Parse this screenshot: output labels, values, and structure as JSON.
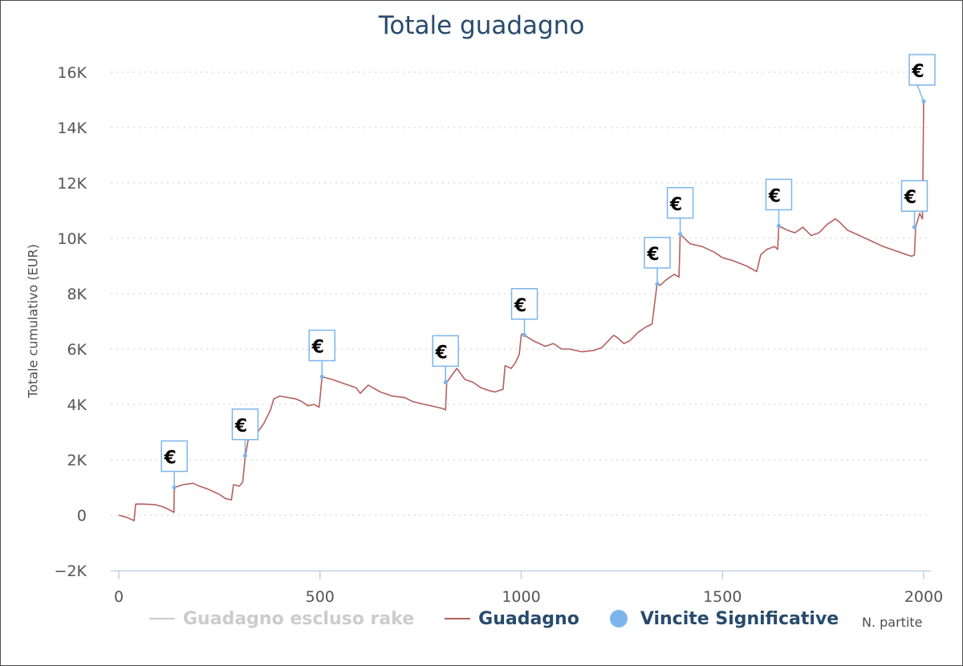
{
  "chart_data": {
    "type": "line",
    "title": "Totale guadagno",
    "ylabel": "Totale cumulativo (EUR)",
    "xlabel": "N. partite",
    "ylim": [
      -2000,
      16000
    ],
    "xlim": [
      0,
      2000
    ],
    "y_ticks": [
      "−2K",
      "0",
      "2K",
      "4K",
      "6K",
      "8K",
      "10K",
      "12K",
      "14K",
      "16K"
    ],
    "y_tick_values": [
      -2000,
      0,
      2000,
      4000,
      6000,
      8000,
      10000,
      12000,
      14000,
      16000
    ],
    "x_ticks": [
      "0",
      "500",
      "1000",
      "1500",
      "2000"
    ],
    "x_tick_values": [
      0,
      500,
      1000,
      1500,
      2000
    ],
    "grid": "horizontal dotted",
    "legend_position": "bottom",
    "series": [
      {
        "name": "Guadagno escluso rake",
        "color": "#cccccc",
        "hidden": true,
        "values": []
      },
      {
        "name": "Guadagno",
        "color": "#b5605f",
        "x": [
          0,
          20,
          38,
          42,
          60,
          90,
          110,
          125,
          137,
          138,
          160,
          185,
          200,
          220,
          250,
          265,
          280,
          285,
          300,
          308,
          314,
          325,
          345,
          360,
          377,
          385,
          400,
          420,
          440,
          455,
          470,
          485,
          498,
          505,
          530,
          560,
          590,
          600,
          620,
          650,
          680,
          710,
          730,
          760,
          790,
          805,
          812,
          815,
          840,
          860,
          880,
          900,
          920,
          935,
          955,
          960,
          975,
          985,
          995,
          1000,
          1002,
          1008,
          1030,
          1060,
          1080,
          1100,
          1120,
          1150,
          1180,
          1200,
          1230,
          1240,
          1255,
          1270,
          1290,
          1310,
          1325,
          1338,
          1345,
          1360,
          1380,
          1392,
          1395,
          1420,
          1450,
          1480,
          1500,
          1525,
          1560,
          1585,
          1595,
          1610,
          1630,
          1637,
          1640,
          1660,
          1680,
          1700,
          1720,
          1740,
          1760,
          1780,
          1790,
          1810,
          1840,
          1870,
          1900,
          1920,
          1940,
          1960,
          1970,
          1977,
          1980,
          1990,
          1995,
          1997,
          2000
        ],
        "values": [
          0,
          -80,
          -200,
          400,
          400,
          380,
          300,
          200,
          100,
          1000,
          1100,
          1150,
          1050,
          950,
          750,
          600,
          550,
          1100,
          1050,
          1200,
          2100,
          3000,
          3000,
          3300,
          3800,
          4200,
          4300,
          4250,
          4200,
          4100,
          3950,
          4000,
          3900,
          5000,
          4900,
          4750,
          4600,
          4400,
          4700,
          4450,
          4300,
          4250,
          4100,
          4000,
          3900,
          3850,
          3800,
          4800,
          5300,
          4900,
          4800,
          4600,
          4500,
          4450,
          4550,
          5400,
          5300,
          5500,
          5800,
          6500,
          6550,
          6500,
          6300,
          6100,
          6200,
          6000,
          6000,
          5900,
          5950,
          6050,
          6500,
          6400,
          6200,
          6300,
          6600,
          6800,
          6900,
          8400,
          8300,
          8500,
          8700,
          8600,
          10150,
          9800,
          9700,
          9500,
          9300,
          9200,
          9000,
          8800,
          9400,
          9600,
          9700,
          9600,
          10450,
          10300,
          10200,
          10400,
          10100,
          10200,
          10500,
          10700,
          10600,
          10300,
          10100,
          9900,
          9700,
          9600,
          9500,
          9400,
          9350,
          9400,
          10400,
          10900,
          10750,
          10700,
          15000
        ]
      }
    ],
    "markers": {
      "name": "Vincite Significative",
      "color": "#7cb5ec",
      "symbol": "€",
      "points": [
        {
          "x": 138,
          "y": 1000
        },
        {
          "x": 314,
          "y": 2150
        },
        {
          "x": 505,
          "y": 5000
        },
        {
          "x": 812,
          "y": 4800
        },
        {
          "x": 1008,
          "y": 6500
        },
        {
          "x": 1338,
          "y": 8350
        },
        {
          "x": 1395,
          "y": 10150
        },
        {
          "x": 1640,
          "y": 10450
        },
        {
          "x": 1977,
          "y": 10400
        },
        {
          "x": 2000,
          "y": 14950
        }
      ]
    }
  }
}
